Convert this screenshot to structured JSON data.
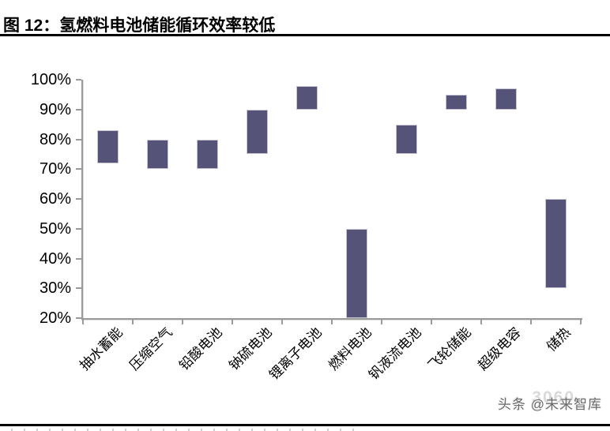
{
  "page": {
    "title": "图 12：氢燃料电池储能循环效率较低",
    "watermark": {
      "label": "头条 @未来智库",
      "ghost": "3060"
    }
  },
  "colors": {
    "bar_fill": "#565378",
    "bar_border": "#c6c5d1",
    "axis": "#9a9a9a",
    "title_text": "#000000",
    "divider": "#000000",
    "watermark_text": "#6a6a6a"
  },
  "chart_data": {
    "type": "bar",
    "variant": "floating-range-column",
    "title": "氢燃料电池储能循环效率较低",
    "xlabel": "",
    "ylabel": "",
    "categories": [
      "抽水蓄能",
      "压缩空气",
      "铅酸电池",
      "钠硫电池",
      "锂离子电池",
      "燃料电池",
      "钒液流电池",
      "飞轮储能",
      "超级电容",
      "储热"
    ],
    "series": [
      {
        "ranges_pct": [
          [
            72,
            83
          ],
          [
            70,
            80
          ],
          [
            70,
            80
          ],
          [
            75,
            90
          ],
          [
            90,
            98
          ],
          [
            20,
            50
          ],
          [
            75,
            85
          ],
          [
            90,
            95
          ],
          [
            90,
            97
          ],
          [
            30,
            60
          ]
        ]
      }
    ],
    "ylim": [
      20,
      100
    ],
    "yticks": [
      100,
      90,
      80,
      70,
      60,
      50,
      40,
      30,
      20
    ],
    "ytick_labels": [
      "100%",
      "90%",
      "80%",
      "70%",
      "60%",
      "50%",
      "40%",
      "30%",
      "20%"
    ],
    "grid": false,
    "legend_position": "none"
  }
}
